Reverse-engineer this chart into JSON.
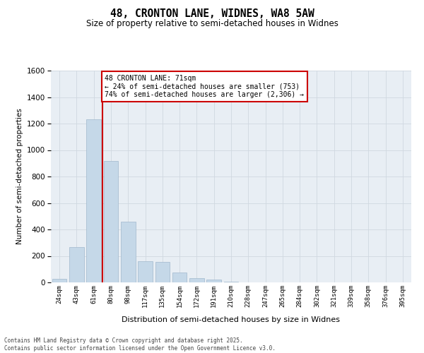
{
  "title": "48, CRONTON LANE, WIDNES, WA8 5AW",
  "subtitle": "Size of property relative to semi-detached houses in Widnes",
  "xlabel": "Distribution of semi-detached houses by size in Widnes",
  "ylabel": "Number of semi-detached properties",
  "categories": [
    "24sqm",
    "43sqm",
    "61sqm",
    "80sqm",
    "98sqm",
    "117sqm",
    "135sqm",
    "154sqm",
    "172sqm",
    "191sqm",
    "210sqm",
    "228sqm",
    "247sqm",
    "265sqm",
    "284sqm",
    "302sqm",
    "321sqm",
    "339sqm",
    "358sqm",
    "376sqm",
    "395sqm"
  ],
  "values": [
    25,
    265,
    1230,
    920,
    460,
    160,
    155,
    75,
    30,
    20,
    5,
    2,
    1,
    0,
    0,
    0,
    0,
    0,
    0,
    0,
    0
  ],
  "bar_color": "#c5d8e8",
  "bar_edge_color": "#a0b8cc",
  "vline_color": "#cc0000",
  "vline_x": 2.5,
  "annotation_title": "48 CRONTON LANE: 71sqm",
  "annotation_line2": "← 24% of semi-detached houses are smaller (753)",
  "annotation_line3": "74% of semi-detached houses are larger (2,306) →",
  "annotation_box_color": "#cc0000",
  "ylim": [
    0,
    1600
  ],
  "yticks": [
    0,
    200,
    400,
    600,
    800,
    1000,
    1200,
    1400,
    1600
  ],
  "grid_color": "#d0d8e0",
  "bg_color": "#e8eef4",
  "footer1": "Contains HM Land Registry data © Crown copyright and database right 2025.",
  "footer2": "Contains public sector information licensed under the Open Government Licence v3.0."
}
